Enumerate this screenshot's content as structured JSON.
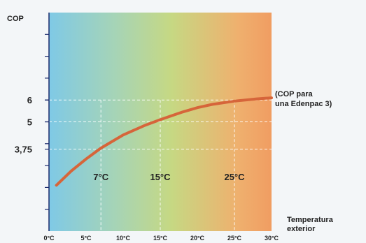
{
  "chart_data": {
    "type": "line",
    "ylabel": "COP",
    "xlabel": "Temperatura exterior",
    "xlim": [
      0,
      30
    ],
    "ylim": [
      0,
      10
    ],
    "x_ticks": [
      0,
      5,
      10,
      15,
      20,
      25,
      30
    ],
    "x_tick_labels": [
      "0°C",
      "5°C",
      "10°C",
      "15°C",
      "20°C",
      "25°C",
      "30°C"
    ],
    "y_ticks": [
      3.75,
      5,
      6
    ],
    "y_tick_labels": [
      "3,75",
      "5",
      "6"
    ],
    "series": [
      {
        "x": [
          1,
          3,
          5,
          7,
          10,
          13,
          15,
          18,
          20,
          22,
          25,
          28,
          30
        ],
        "y": [
          2.1,
          2.75,
          3.3,
          3.8,
          4.4,
          4.85,
          5.1,
          5.45,
          5.65,
          5.8,
          5.95,
          6.05,
          6.1
        ]
      }
    ],
    "markers": [
      {
        "x": 7,
        "label": "7°C"
      },
      {
        "x": 15,
        "label": "15°C"
      },
      {
        "x": 25,
        "label": "25°C"
      }
    ],
    "annotation": [
      "(COP para",
      "una Edenpac 3)"
    ],
    "gradient_colors": [
      "#7fc9e6",
      "#a6d4b6",
      "#c6d883",
      "#efb06e",
      "#f09d62"
    ],
    "line_color": "#d6653a",
    "grid_color": "#ffffff"
  }
}
